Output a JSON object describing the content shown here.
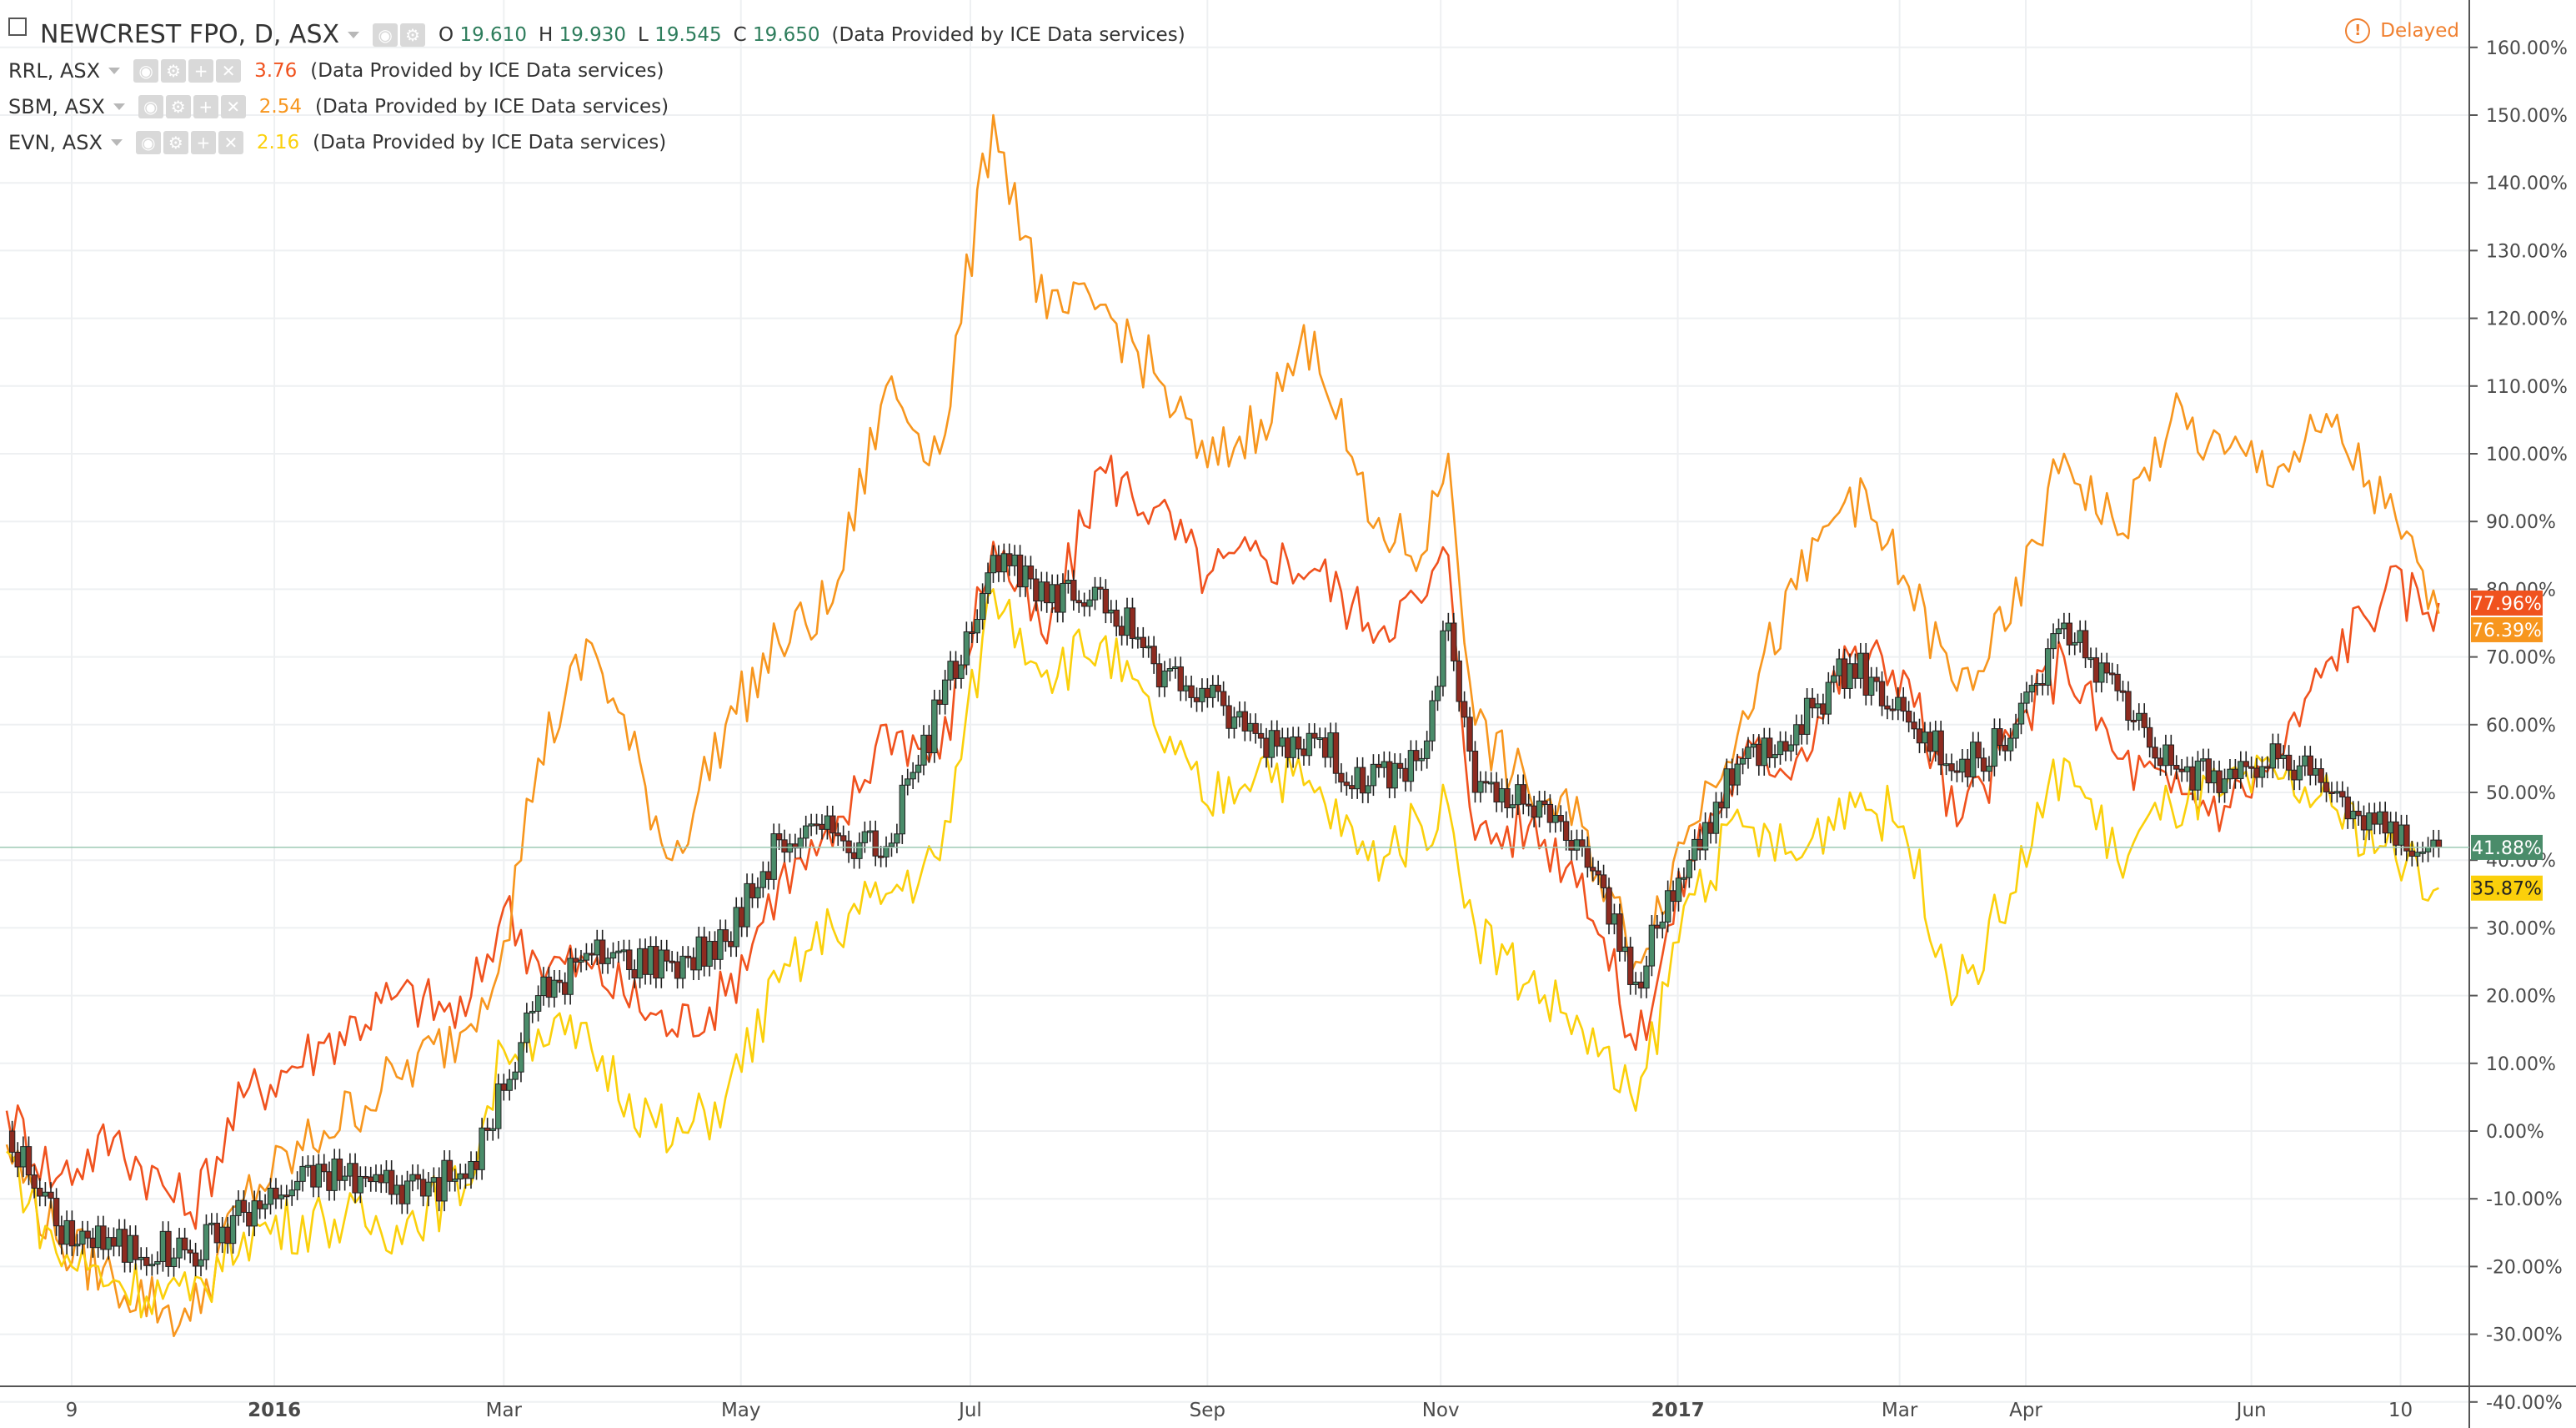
{
  "header": {
    "main_symbol": "NEWCREST FPO, D, ASX",
    "o_label": "O",
    "o_value": "19.610",
    "h_label": "H",
    "h_value": "19.930",
    "l_label": "L",
    "l_value": "19.545",
    "c_label": "C",
    "c_value": "19.650",
    "provider": "(Data Provided by ICE Data services)",
    "delayed": "Delayed"
  },
  "compare": [
    {
      "symbol": "RRL, ASX",
      "value": "3.76",
      "color": "#f0521e",
      "provider": "(Data Provided by ICE Data services)"
    },
    {
      "symbol": "SBM, ASX",
      "value": "2.54",
      "color": "#f7961e",
      "provider": "(Data Provided by ICE Data services)"
    },
    {
      "symbol": "EVN, ASX",
      "value": "2.16",
      "color": "#fbd00b",
      "provider": "(Data Provided by ICE Data services)"
    }
  ],
  "chart_data": {
    "type": "line",
    "y_unit": "%",
    "ylim": [
      -40,
      160
    ],
    "y_ticks": [
      "160.00%",
      "150.00%",
      "140.00%",
      "130.00%",
      "120.00%",
      "110.00%",
      "100.00%",
      "90.00%",
      "80.00%",
      "70.00%",
      "60.00%",
      "50.00%",
      "40.00%",
      "30.00%",
      "20.00%",
      "10.00%",
      "0.00%",
      "-10.00%",
      "-20.00%",
      "-30.00%",
      "-40.00%"
    ],
    "y_tick_values": [
      160,
      150,
      140,
      130,
      120,
      110,
      100,
      90,
      80,
      70,
      60,
      50,
      40,
      30,
      20,
      10,
      0,
      -10,
      -20,
      -30,
      -40
    ],
    "x_ticks": [
      {
        "label": "9",
        "date": "2015-11-09"
      },
      {
        "label": "2016",
        "date": "2016-01-01"
      },
      {
        "label": "Mar",
        "date": "2016-03-01"
      },
      {
        "label": "May",
        "date": "2016-05-02"
      },
      {
        "label": "Jul",
        "date": "2016-07-01"
      },
      {
        "label": "Sep",
        "date": "2016-09-01"
      },
      {
        "label": "Nov",
        "date": "2016-11-01"
      },
      {
        "label": "2017",
        "date": "2017-01-02"
      },
      {
        "label": "Mar",
        "date": "2017-03-01"
      },
      {
        "label": "Apr",
        "date": "2017-04-03"
      },
      {
        "label": "Jun",
        "date": "2017-06-01"
      },
      {
        "label": "10",
        "date": "2017-07-10"
      }
    ],
    "x_range": [
      "2015-10-23",
      "2017-07-21"
    ],
    "grid": true,
    "series": [
      {
        "name": "NEWCREST FPO, D, ASX",
        "style": "candles",
        "color": "#4a8c6a",
        "down_color": "#8e2b20",
        "points": [
          [
            "2015-10-23",
            0
          ],
          [
            "2015-11-05",
            -14
          ],
          [
            "2015-11-20",
            -17
          ],
          [
            "2015-12-10",
            -18
          ],
          [
            "2015-12-24",
            -12
          ],
          [
            "2016-01-14",
            -6
          ],
          [
            "2016-02-02",
            -8
          ],
          [
            "2016-02-20",
            -7
          ],
          [
            "2016-03-01",
            6
          ],
          [
            "2016-03-10",
            20
          ],
          [
            "2016-03-24",
            26
          ],
          [
            "2016-04-14",
            25
          ],
          [
            "2016-04-28",
            28
          ],
          [
            "2016-05-12",
            43
          ],
          [
            "2016-05-26",
            44
          ],
          [
            "2016-06-09",
            42
          ],
          [
            "2016-06-23",
            63
          ],
          [
            "2016-07-07",
            85
          ],
          [
            "2016-07-21",
            78
          ],
          [
            "2016-08-04",
            80
          ],
          [
            "2016-08-18",
            69
          ],
          [
            "2016-09-01",
            64
          ],
          [
            "2016-09-15",
            58
          ],
          [
            "2016-09-29",
            58
          ],
          [
            "2016-10-13",
            51
          ],
          [
            "2016-10-27",
            55
          ],
          [
            "2016-11-03",
            75
          ],
          [
            "2016-11-10",
            50
          ],
          [
            "2016-11-24",
            48
          ],
          [
            "2016-12-08",
            42
          ],
          [
            "2016-12-22",
            22
          ],
          [
            "2017-01-05",
            40
          ],
          [
            "2017-01-19",
            55
          ],
          [
            "2017-02-02",
            60
          ],
          [
            "2017-02-16",
            69
          ],
          [
            "2017-03-02",
            62
          ],
          [
            "2017-03-16",
            53
          ],
          [
            "2017-03-30",
            58
          ],
          [
            "2017-04-13",
            75
          ],
          [
            "2017-04-27",
            65
          ],
          [
            "2017-05-11",
            54
          ],
          [
            "2017-05-25",
            52
          ],
          [
            "2017-06-08",
            55
          ],
          [
            "2017-06-22",
            50
          ],
          [
            "2017-07-06",
            44
          ],
          [
            "2017-07-20",
            41.88
          ]
        ]
      },
      {
        "name": "RRL, ASX",
        "style": "line",
        "color": "#f0521e",
        "points": [
          [
            "2015-10-23",
            3
          ],
          [
            "2015-11-05",
            -7
          ],
          [
            "2015-11-20",
            -1
          ],
          [
            "2015-12-10",
            -12
          ],
          [
            "2015-12-24",
            5
          ],
          [
            "2016-01-14",
            13
          ],
          [
            "2016-02-02",
            20
          ],
          [
            "2016-02-20",
            17
          ],
          [
            "2016-03-01",
            33
          ],
          [
            "2016-03-10",
            25
          ],
          [
            "2016-03-24",
            24
          ],
          [
            "2016-04-14",
            15
          ],
          [
            "2016-04-28",
            20
          ],
          [
            "2016-05-12",
            37
          ],
          [
            "2016-05-26",
            42
          ],
          [
            "2016-06-09",
            60
          ],
          [
            "2016-06-23",
            55
          ],
          [
            "2016-07-07",
            87
          ],
          [
            "2016-07-21",
            72
          ],
          [
            "2016-08-04",
            98
          ],
          [
            "2016-08-18",
            92
          ],
          [
            "2016-09-01",
            82
          ],
          [
            "2016-09-15",
            85
          ],
          [
            "2016-09-29",
            83
          ],
          [
            "2016-10-13",
            75
          ],
          [
            "2016-10-27",
            78
          ],
          [
            "2016-11-03",
            85
          ],
          [
            "2016-11-10",
            43
          ],
          [
            "2016-11-24",
            45
          ],
          [
            "2016-12-08",
            38
          ],
          [
            "2016-12-22",
            12
          ],
          [
            "2017-01-05",
            40
          ],
          [
            "2017-01-19",
            55
          ],
          [
            "2017-02-02",
            55
          ],
          [
            "2017-02-16",
            70
          ],
          [
            "2017-03-02",
            68
          ],
          [
            "2017-03-16",
            45
          ],
          [
            "2017-03-30",
            58
          ],
          [
            "2017-04-13",
            70
          ],
          [
            "2017-04-27",
            55
          ],
          [
            "2017-05-11",
            50
          ],
          [
            "2017-05-25",
            48
          ],
          [
            "2017-06-08",
            55
          ],
          [
            "2017-06-22",
            70
          ],
          [
            "2017-07-06",
            80
          ],
          [
            "2017-07-20",
            77.96
          ]
        ]
      },
      {
        "name": "SBM, ASX",
        "style": "line",
        "color": "#f7961e",
        "points": [
          [
            "2015-10-23",
            -2
          ],
          [
            "2015-11-05",
            -16
          ],
          [
            "2015-11-20",
            -22
          ],
          [
            "2015-12-10",
            -28
          ],
          [
            "2015-12-24",
            -10
          ],
          [
            "2016-01-14",
            0
          ],
          [
            "2016-02-02",
            8
          ],
          [
            "2016-02-20",
            15
          ],
          [
            "2016-03-01",
            28
          ],
          [
            "2016-03-10",
            55
          ],
          [
            "2016-03-24",
            72
          ],
          [
            "2016-04-14",
            40
          ],
          [
            "2016-04-28",
            60
          ],
          [
            "2016-05-12",
            72
          ],
          [
            "2016-05-26",
            78
          ],
          [
            "2016-06-09",
            110
          ],
          [
            "2016-06-23",
            100
          ],
          [
            "2016-07-07",
            150
          ],
          [
            "2016-07-21",
            120
          ],
          [
            "2016-08-04",
            122
          ],
          [
            "2016-08-18",
            112
          ],
          [
            "2016-09-01",
            98
          ],
          [
            "2016-09-15",
            105
          ],
          [
            "2016-09-29",
            118
          ],
          [
            "2016-10-13",
            90
          ],
          [
            "2016-10-27",
            85
          ],
          [
            "2016-11-03",
            100
          ],
          [
            "2016-11-10",
            60
          ],
          [
            "2016-11-24",
            50
          ],
          [
            "2016-12-08",
            45
          ],
          [
            "2016-12-22",
            25
          ],
          [
            "2017-01-05",
            45
          ],
          [
            "2017-01-19",
            62
          ],
          [
            "2017-02-02",
            80
          ],
          [
            "2017-02-16",
            95
          ],
          [
            "2017-03-02",
            82
          ],
          [
            "2017-03-16",
            65
          ],
          [
            "2017-03-30",
            75
          ],
          [
            "2017-04-13",
            100
          ],
          [
            "2017-04-27",
            88
          ],
          [
            "2017-05-11",
            105
          ],
          [
            "2017-05-25",
            100
          ],
          [
            "2017-06-08",
            98
          ],
          [
            "2017-06-22",
            104
          ],
          [
            "2017-07-06",
            92
          ],
          [
            "2017-07-20",
            76.39
          ]
        ]
      },
      {
        "name": "EVN, ASX",
        "style": "line",
        "color": "#fbd00b",
        "points": [
          [
            "2015-10-23",
            -3
          ],
          [
            "2015-11-05",
            -18
          ],
          [
            "2015-11-20",
            -22
          ],
          [
            "2015-12-10",
            -25
          ],
          [
            "2015-12-24",
            -15
          ],
          [
            "2016-01-14",
            -13
          ],
          [
            "2016-02-02",
            -14
          ],
          [
            "2016-02-20",
            -8
          ],
          [
            "2016-03-01",
            12
          ],
          [
            "2016-03-10",
            15
          ],
          [
            "2016-03-24",
            12
          ],
          [
            "2016-04-14",
            -2
          ],
          [
            "2016-04-28",
            5
          ],
          [
            "2016-05-12",
            22
          ],
          [
            "2016-05-26",
            30
          ],
          [
            "2016-06-09",
            35
          ],
          [
            "2016-06-23",
            40
          ],
          [
            "2016-07-07",
            80
          ],
          [
            "2016-07-21",
            68
          ],
          [
            "2016-08-04",
            72
          ],
          [
            "2016-08-18",
            60
          ],
          [
            "2016-09-01",
            48
          ],
          [
            "2016-09-15",
            55
          ],
          [
            "2016-09-29",
            50
          ],
          [
            "2016-10-13",
            40
          ],
          [
            "2016-10-27",
            45
          ],
          [
            "2016-11-03",
            48
          ],
          [
            "2016-11-10",
            30
          ],
          [
            "2016-11-24",
            22
          ],
          [
            "2016-12-08",
            15
          ],
          [
            "2016-12-22",
            3
          ],
          [
            "2017-01-05",
            35
          ],
          [
            "2017-01-19",
            45
          ],
          [
            "2017-02-02",
            40
          ],
          [
            "2017-02-16",
            50
          ],
          [
            "2017-03-02",
            45
          ],
          [
            "2017-03-16",
            20
          ],
          [
            "2017-03-30",
            35
          ],
          [
            "2017-04-13",
            55
          ],
          [
            "2017-04-27",
            40
          ],
          [
            "2017-05-11",
            48
          ],
          [
            "2017-05-25",
            50
          ],
          [
            "2017-06-08",
            52
          ],
          [
            "2017-06-22",
            48
          ],
          [
            "2017-07-06",
            42
          ],
          [
            "2017-07-20",
            35.87
          ]
        ]
      }
    ],
    "last_value_labels": [
      {
        "series": "RRL, ASX",
        "text": "77.96%",
        "color": "#f0521e"
      },
      {
        "series": "SBM, ASX",
        "text": "76.39%",
        "color": "#f7961e"
      },
      {
        "series": "NEWCREST FPO, D, ASX",
        "text": "41.88%",
        "color": "#4a8c6a"
      },
      {
        "series": "EVN, ASX",
        "text": "35.87%",
        "color": "#fbd00b"
      }
    ]
  }
}
